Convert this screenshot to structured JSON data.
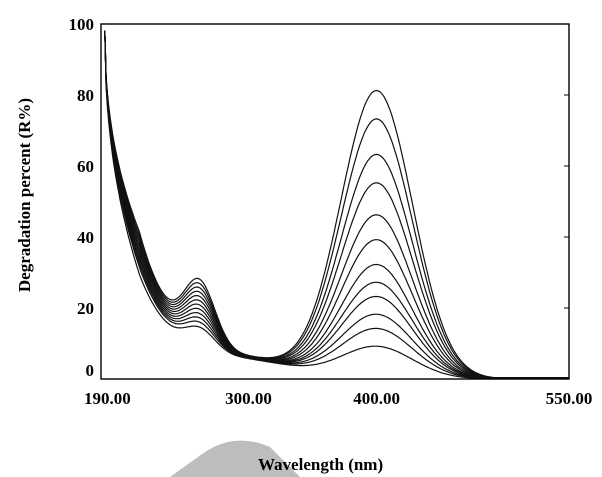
{
  "chart_data": {
    "type": "line",
    "xlabel": "Wavelength (nm)",
    "ylabel": "Degradation percent (R%)",
    "xlim": [
      185,
      550
    ],
    "ylim": [
      0,
      100
    ],
    "x_ticks": [
      {
        "value": 190,
        "label": "190.00"
      },
      {
        "value": 300,
        "label": "300.00"
      },
      {
        "value": 400,
        "label": "400.00"
      },
      {
        "value": 550,
        "label": "550.00"
      }
    ],
    "y_ticks": [
      {
        "value": 0,
        "label": "0"
      },
      {
        "value": 20,
        "label": "20"
      },
      {
        "value": 40,
        "label": "40"
      },
      {
        "value": 60,
        "label": "60"
      },
      {
        "value": 80,
        "label": "80"
      },
      {
        "value": 100,
        "label": "100"
      }
    ],
    "grid": false,
    "series": [
      {
        "peak": 81,
        "uv": 33,
        "shoulder": 17
      },
      {
        "peak": 73,
        "uv": 32,
        "shoulder": 16
      },
      {
        "peak": 63,
        "uv": 31,
        "shoulder": 15
      },
      {
        "peak": 55,
        "uv": 30,
        "shoulder": 14
      },
      {
        "peak": 46,
        "uv": 29,
        "shoulder": 13
      },
      {
        "peak": 39,
        "uv": 28,
        "shoulder": 12
      },
      {
        "peak": 32,
        "uv": 27,
        "shoulder": 11
      },
      {
        "peak": 27,
        "uv": 26,
        "shoulder": 10
      },
      {
        "peak": 23,
        "uv": 25,
        "shoulder": 9
      },
      {
        "peak": 18,
        "uv": 24,
        "shoulder": 8
      },
      {
        "peak": 14,
        "uv": 23,
        "shoulder": 7
      },
      {
        "peak": 9,
        "uv": 21,
        "shoulder": 6
      }
    ]
  },
  "colors": {
    "line": "#111111",
    "watermark": "#bdbdbd"
  }
}
